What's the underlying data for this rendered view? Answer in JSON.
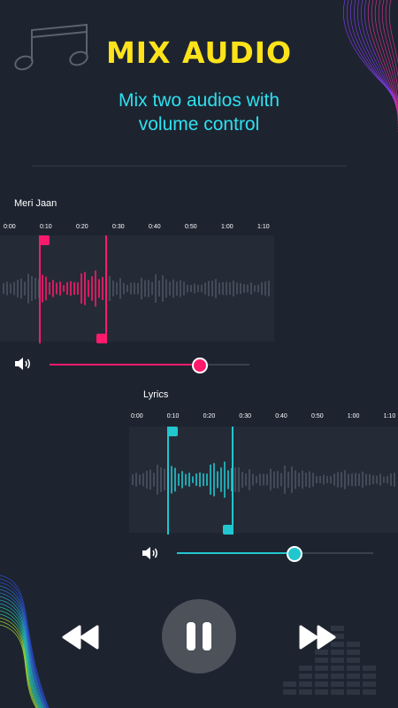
{
  "header": {
    "title": "MIX AUDIO",
    "subtitle_line1": "Mix two audios with",
    "subtitle_line2": "volume control"
  },
  "track1": {
    "name": "Meri Jaan",
    "ticks": [
      "0:00",
      "0:10",
      "0:20",
      "0:30",
      "0:40",
      "0:50",
      "1:00",
      "1:10"
    ],
    "volume": 0.75,
    "accent": "#ff1a6c"
  },
  "track2": {
    "name": "Lyrics",
    "ticks": [
      "0:00",
      "0:10",
      "0:20",
      "0:30",
      "0:40",
      "0:50",
      "1:00",
      "1:10"
    ],
    "volume": 0.6,
    "accent": "#22c6cf"
  },
  "controls": {
    "rewind_icon": "rewind-icon",
    "pause_icon": "pause-icon",
    "forward_icon": "fast-forward-icon"
  }
}
